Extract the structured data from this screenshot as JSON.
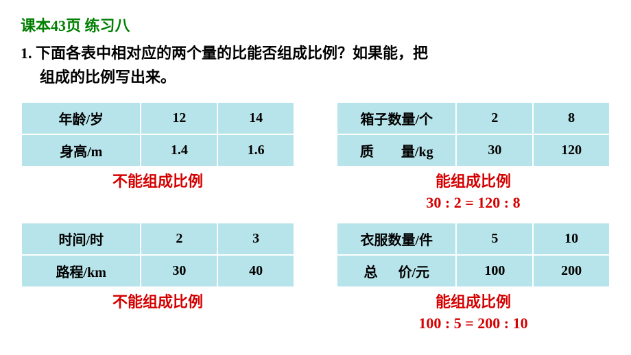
{
  "colors": {
    "header_color": "#008000",
    "text_color": "#000000",
    "answer_color": "#d40000",
    "cell_bg": "#b7e4ea",
    "background": "#ffffff"
  },
  "header": "课本43页 练习八",
  "question_line1": "1. 下面各表中相对应的两个量的比能否组成比例？如果能，把",
  "question_line2": "组成的比例写出来。",
  "tables": {
    "t1": {
      "row1_label": "年龄/岁",
      "row1_v1": "12",
      "row1_v2": "14",
      "row2_label": "身高/m",
      "row2_v1": "1.4",
      "row2_v2": "1.6",
      "answer": "不能组成比例",
      "equation": ""
    },
    "t2": {
      "row1_label": "箱子数量/个",
      "row1_v1": "2",
      "row1_v2": "8",
      "row2_label_a": "质",
      "row2_label_b": "量/kg",
      "row2_v1": "30",
      "row2_v2": "120",
      "answer": "能组成比例",
      "equation": "30 : 2 = 120 : 8"
    },
    "t3": {
      "row1_label": "时间/时",
      "row1_v1": "2",
      "row1_v2": "3",
      "row2_label": "路程/km",
      "row2_v1": "30",
      "row2_v2": "40",
      "answer": "不能组成比例",
      "equation": ""
    },
    "t4": {
      "row1_label": "衣服数量/件",
      "row1_v1": "5",
      "row1_v2": "10",
      "row2_label_a": "总",
      "row2_label_b": "价/元",
      "row2_v1": "100",
      "row2_v2": "200",
      "answer": "能组成比例",
      "equation": "100 : 5 = 200 : 10"
    }
  },
  "styling": {
    "table_font_size": 20,
    "header_font_size": 22,
    "question_font_size": 22,
    "answer_font_size": 22,
    "cell_padding": 8,
    "border_spacing": 2
  }
}
